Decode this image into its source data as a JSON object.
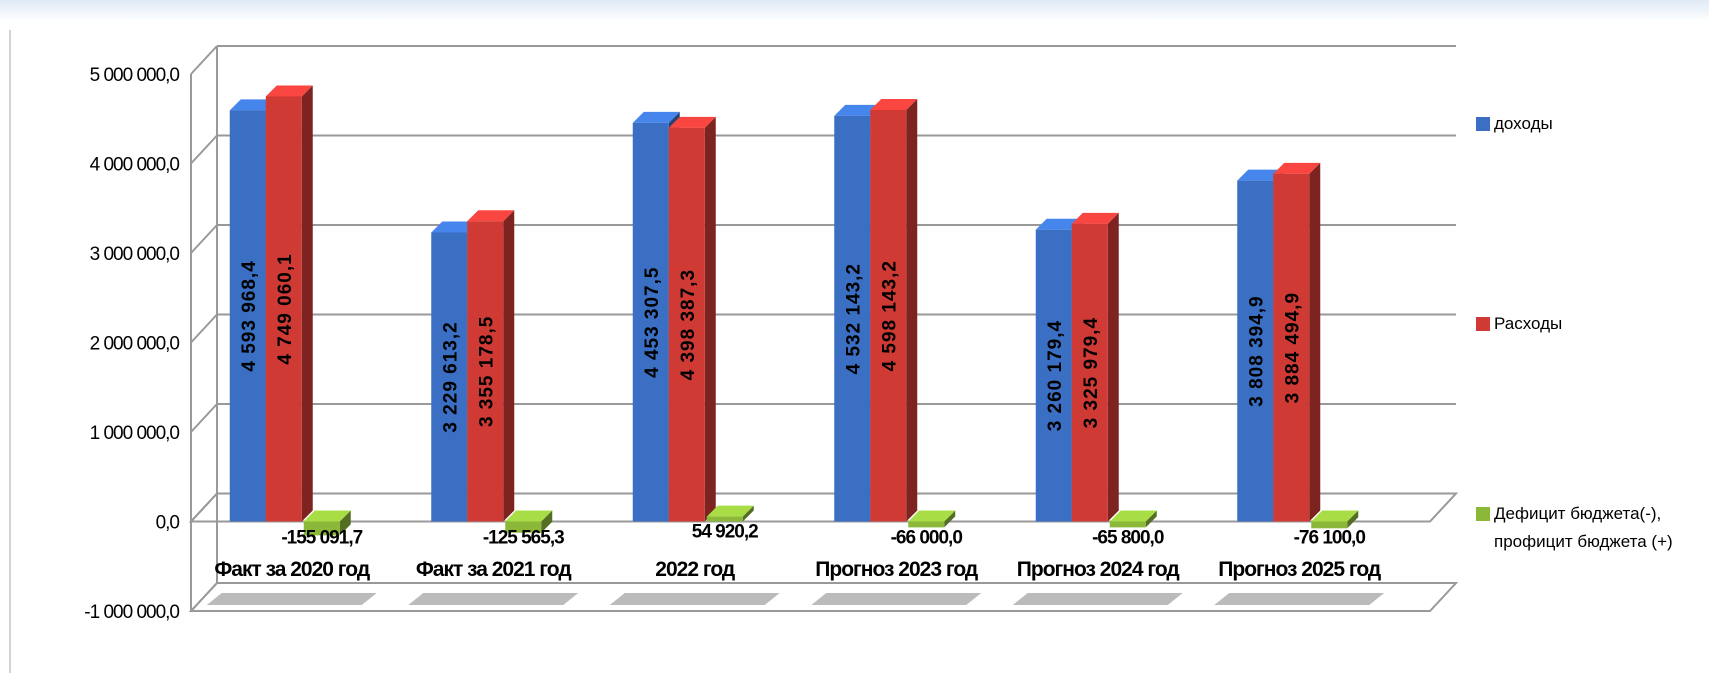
{
  "chart_data": {
    "type": "bar3d",
    "categories": [
      "Факт за 2020 год",
      "Факт за 2021 год",
      "2022 год",
      "Прогноз 2023 год",
      "Прогноз 2024 год",
      "Прогноз 2025 год"
    ],
    "series": [
      {
        "name": "доходы",
        "color": "#3a6fc4",
        "values": [
          4593968.4,
          3229613.2,
          4453307.5,
          4532143.2,
          3260179.4,
          3808394.9
        ],
        "value_labels": [
          "4 593 968,4",
          "3 229 613,2",
          "4 453 307,5",
          "4 532 143,2",
          "3 260 179,4",
          "3 808 394,9"
        ]
      },
      {
        "name": "Расходы",
        "color": "#d03a35",
        "values": [
          4749060.1,
          3355178.5,
          4398387.3,
          4598143.2,
          3325979.4,
          3884494.9
        ],
        "value_labels": [
          "4 749 060,1",
          "3 355 178,5",
          "4 398 387,3",
          "4 598 143,2",
          "3 325 979,4",
          "3 884 494,9"
        ]
      },
      {
        "name": "Дефицит бюджета(-), профицит бюджета (+)",
        "color": "#8cb83a",
        "values": [
          -155091.7,
          -125565.3,
          54920.2,
          -66000.0,
          -65800.0,
          -76100.0
        ],
        "value_labels": [
          "-155 091,7",
          "-125 565,3",
          "54 920,2",
          "-66 000,0",
          "-65 800,0",
          "-76 100,0"
        ]
      }
    ],
    "ylim": [
      -1000000,
      5000000
    ],
    "yticks": [
      {
        "value": -1000000,
        "label": "-1 000 000,0"
      },
      {
        "value": 0,
        "label": "0,0"
      },
      {
        "value": 1000000,
        "label": "1 000 000,0"
      },
      {
        "value": 2000000,
        "label": "2 000 000,0"
      },
      {
        "value": 3000000,
        "label": "3 000 000,0"
      },
      {
        "value": 4000000,
        "label": "4 000 000,0"
      },
      {
        "value": 5000000,
        "label": "5 000 000,0"
      }
    ],
    "grid": true,
    "legend": "right"
  }
}
